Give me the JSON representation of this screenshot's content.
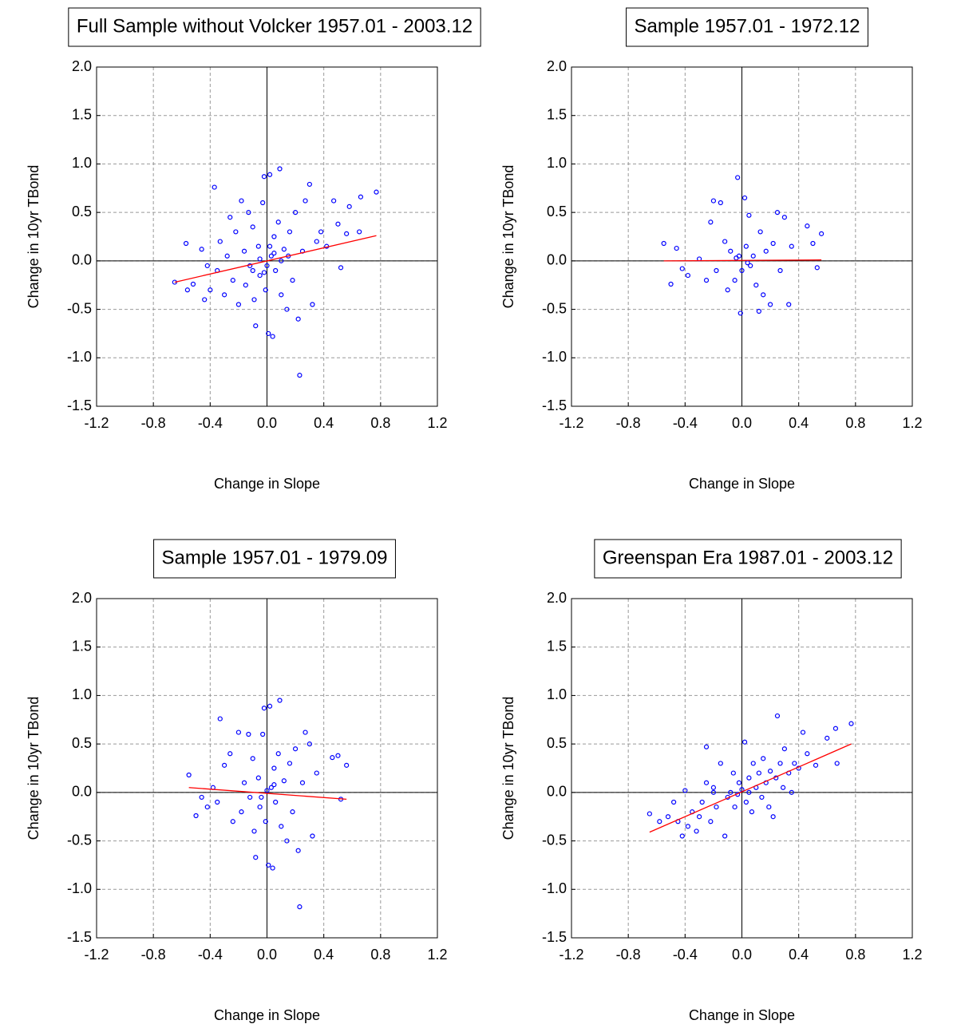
{
  "chart_data": [
    {
      "type": "scatter",
      "title": "Full Sample without Volcker 1957.01 - 2003.12",
      "xlabel": "Change in Slope",
      "ylabel": "Change in 10yr TBond",
      "xlim": [
        -1.2,
        1.2
      ],
      "ylim": [
        -1.5,
        2.0
      ],
      "xticks": [
        -1.2,
        -0.8,
        -0.4,
        {
          "value": 0,
          "label": "0.0"
        },
        0.4,
        0.8,
        1.2
      ],
      "yticks": [
        -1.5,
        {
          "value": -1,
          "label": "-1.0"
        },
        -0.5,
        {
          "value": 0,
          "label": "0.0"
        },
        0.5,
        {
          "value": 1,
          "label": "1.0"
        },
        1.5,
        {
          "value": 2,
          "label": "2.0"
        }
      ],
      "grid": true,
      "series": [
        {
          "type": "scatter",
          "color": "#0000ff",
          "x": [
            -0.65,
            -0.57,
            -0.56,
            -0.52,
            -0.46,
            -0.44,
            -0.42,
            -0.4,
            -0.37,
            -0.35,
            -0.33,
            -0.3,
            -0.28,
            -0.26,
            -0.24,
            -0.22,
            -0.2,
            -0.18,
            -0.16,
            -0.15,
            -0.13,
            -0.12,
            -0.1,
            -0.09,
            -0.08,
            -0.06,
            -0.05,
            -0.03,
            -0.02,
            -0.01,
            0.01,
            0.02,
            0.03,
            0.04,
            0.05,
            0.06,
            0.08,
            0.09,
            0.1,
            0.12,
            0.14,
            0.16,
            0.18,
            0.2,
            0.22,
            0.23,
            0.25,
            0.27,
            0.3,
            0.32,
            0.35,
            0.38,
            0.42,
            0.47,
            0.5,
            0.52,
            0.56,
            0.58,
            0.65,
            0.66,
            0.77,
            -0.05,
            0.0,
            0.05,
            0.1,
            -0.1,
            0.15,
            0.02,
            -0.02
          ],
          "values": [
            -0.22,
            0.18,
            -0.3,
            -0.24,
            0.12,
            -0.4,
            -0.05,
            -0.3,
            0.76,
            -0.1,
            0.2,
            -0.35,
            0.05,
            0.45,
            -0.2,
            0.3,
            -0.45,
            0.62,
            0.1,
            -0.25,
            0.5,
            -0.05,
            0.35,
            -0.4,
            -0.67,
            0.15,
            -0.15,
            0.6,
            0.87,
            -0.3,
            -0.75,
            0.89,
            0.05,
            -0.78,
            0.25,
            -0.1,
            0.4,
            0.95,
            -0.35,
            0.12,
            -0.5,
            0.3,
            -0.2,
            0.5,
            -0.6,
            -1.18,
            0.1,
            0.62,
            0.79,
            -0.45,
            0.2,
            0.3,
            0.15,
            0.62,
            0.38,
            -0.07,
            0.28,
            0.56,
            0.3,
            0.66,
            0.71,
            0.02,
            -0.05,
            0.08,
            0.0,
            -0.1,
            0.05,
            0.15,
            -0.12
          ]
        },
        {
          "type": "line",
          "color": "#ff0000",
          "x": [
            -0.65,
            0.77
          ],
          "values": [
            -0.22,
            0.26
          ]
        }
      ]
    },
    {
      "type": "scatter",
      "title": "Sample 1957.01 - 1972.12",
      "xlabel": "Change in Slope",
      "ylabel": "Change in 10yr TBond",
      "xlim": [
        -1.2,
        1.2
      ],
      "ylim": [
        -1.5,
        2.0
      ],
      "xticks": [
        -1.2,
        -0.8,
        -0.4,
        {
          "value": 0,
          "label": "0.0"
        },
        0.4,
        0.8,
        1.2
      ],
      "yticks": [
        -1.5,
        {
          "value": -1,
          "label": "-1.0"
        },
        -0.5,
        {
          "value": 0,
          "label": "0.0"
        },
        0.5,
        {
          "value": 1,
          "label": "1.0"
        },
        1.5,
        {
          "value": 2,
          "label": "2.0"
        }
      ],
      "grid": true,
      "series": [
        {
          "type": "scatter",
          "color": "#0000ff",
          "x": [
            -0.55,
            -0.5,
            -0.46,
            -0.42,
            -0.38,
            -0.3,
            -0.25,
            -0.22,
            -0.2,
            -0.18,
            -0.15,
            -0.12,
            -0.1,
            -0.08,
            -0.05,
            -0.03,
            -0.02,
            -0.01,
            0.0,
            0.02,
            0.03,
            0.05,
            0.06,
            0.08,
            0.1,
            0.12,
            0.13,
            0.15,
            0.17,
            0.2,
            0.22,
            0.25,
            0.27,
            0.3,
            0.33,
            0.35,
            0.46,
            0.5,
            0.53,
            0.56,
            0.04,
            -0.04
          ],
          "values": [
            0.18,
            -0.24,
            0.13,
            -0.08,
            -0.15,
            0.02,
            -0.2,
            0.4,
            0.62,
            -0.1,
            0.6,
            0.2,
            -0.3,
            0.1,
            -0.2,
            0.86,
            0.05,
            -0.54,
            -0.1,
            0.65,
            0.15,
            0.47,
            -0.05,
            0.05,
            -0.25,
            -0.52,
            0.3,
            -0.35,
            0.1,
            -0.45,
            0.18,
            0.5,
            -0.1,
            0.45,
            -0.45,
            0.15,
            0.36,
            0.18,
            -0.07,
            0.28,
            -0.02,
            0.03
          ]
        },
        {
          "type": "line",
          "color": "#ff0000",
          "x": [
            -0.55,
            0.56
          ],
          "values": [
            0.0,
            0.01
          ]
        }
      ]
    },
    {
      "type": "scatter",
      "title": "Sample 1957.01 - 1979.09",
      "xlabel": "Change in Slope",
      "ylabel": "Change in 10yr TBond",
      "xlim": [
        -1.2,
        1.2
      ],
      "ylim": [
        -1.5,
        2.0
      ],
      "xticks": [
        -1.2,
        -0.8,
        -0.4,
        {
          "value": 0,
          "label": "0.0"
        },
        0.4,
        0.8,
        1.2
      ],
      "yticks": [
        -1.5,
        {
          "value": -1,
          "label": "-1.0"
        },
        -0.5,
        {
          "value": 0,
          "label": "0.0"
        },
        0.5,
        {
          "value": 1,
          "label": "1.0"
        },
        1.5,
        {
          "value": 2,
          "label": "2.0"
        }
      ],
      "grid": true,
      "series": [
        {
          "type": "scatter",
          "color": "#0000ff",
          "x": [
            -0.55,
            -0.5,
            -0.46,
            -0.42,
            -0.38,
            -0.35,
            -0.33,
            -0.3,
            -0.26,
            -0.24,
            -0.2,
            -0.18,
            -0.16,
            -0.13,
            -0.12,
            -0.1,
            -0.09,
            -0.08,
            -0.06,
            -0.05,
            -0.03,
            -0.02,
            -0.01,
            0.01,
            0.02,
            0.03,
            0.04,
            0.05,
            0.06,
            0.08,
            0.09,
            0.1,
            0.12,
            0.14,
            0.16,
            0.18,
            0.2,
            0.22,
            0.23,
            0.25,
            0.27,
            0.3,
            0.32,
            0.35,
            0.46,
            0.5,
            0.52,
            0.56,
            0.0,
            0.05,
            -0.04
          ],
          "values": [
            0.18,
            -0.24,
            -0.05,
            -0.15,
            0.05,
            -0.1,
            0.76,
            0.28,
            0.4,
            -0.3,
            0.62,
            -0.2,
            0.1,
            0.6,
            -0.05,
            0.35,
            -0.4,
            -0.67,
            0.15,
            -0.15,
            0.6,
            0.87,
            -0.3,
            -0.75,
            0.89,
            0.05,
            -0.78,
            0.25,
            -0.1,
            0.4,
            0.95,
            -0.35,
            0.12,
            -0.5,
            0.3,
            -0.2,
            0.45,
            -0.6,
            -1.18,
            0.1,
            0.62,
            0.5,
            -0.45,
            0.2,
            0.36,
            0.38,
            -0.07,
            0.28,
            0.02,
            0.08,
            -0.05
          ]
        },
        {
          "type": "line",
          "color": "#ff0000",
          "x": [
            -0.55,
            0.56
          ],
          "values": [
            0.05,
            -0.07
          ]
        }
      ]
    },
    {
      "type": "scatter",
      "title": "Greenspan Era 1987.01 - 2003.12",
      "xlabel": "Change in Slope",
      "ylabel": "Change in 10yr TBond",
      "xlim": [
        -1.2,
        1.2
      ],
      "ylim": [
        -1.5,
        2.0
      ],
      "xticks": [
        -1.2,
        -0.8,
        -0.4,
        {
          "value": 0,
          "label": "0.0"
        },
        0.4,
        0.8,
        1.2
      ],
      "yticks": [
        -1.5,
        {
          "value": -1,
          "label": "-1.0"
        },
        -0.5,
        {
          "value": 0,
          "label": "0.0"
        },
        0.5,
        {
          "value": 1,
          "label": "1.0"
        },
        1.5,
        {
          "value": 2,
          "label": "2.0"
        }
      ],
      "grid": true,
      "series": [
        {
          "type": "scatter",
          "color": "#0000ff",
          "x": [
            -0.65,
            -0.58,
            -0.52,
            -0.48,
            -0.45,
            -0.42,
            -0.4,
            -0.38,
            -0.35,
            -0.32,
            -0.3,
            -0.28,
            -0.25,
            -0.25,
            -0.22,
            -0.2,
            -0.18,
            -0.15,
            -0.12,
            -0.1,
            -0.08,
            -0.06,
            -0.05,
            -0.03,
            -0.02,
            0.0,
            0.02,
            0.03,
            0.05,
            0.07,
            0.08,
            0.1,
            0.12,
            0.14,
            0.15,
            0.17,
            0.19,
            0.2,
            0.22,
            0.24,
            0.25,
            0.27,
            0.29,
            0.3,
            0.33,
            0.35,
            0.37,
            0.4,
            0.43,
            0.46,
            0.52,
            0.6,
            0.66,
            0.67,
            0.77,
            -0.2,
            0.05
          ],
          "values": [
            -0.22,
            -0.3,
            -0.25,
            -0.1,
            -0.3,
            -0.45,
            0.02,
            -0.35,
            -0.2,
            -0.4,
            -0.25,
            -0.1,
            0.1,
            0.47,
            -0.3,
            0.05,
            -0.15,
            0.3,
            -0.45,
            -0.05,
            0.0,
            0.2,
            -0.15,
            -0.02,
            0.1,
            0.03,
            0.52,
            -0.1,
            0.15,
            -0.2,
            0.3,
            0.05,
            0.2,
            -0.05,
            0.35,
            0.1,
            -0.15,
            0.22,
            -0.25,
            0.15,
            0.79,
            0.3,
            0.05,
            0.45,
            0.2,
            0.0,
            0.3,
            0.25,
            0.62,
            0.4,
            0.28,
            0.56,
            0.66,
            0.3,
            0.71,
            0.0,
            0.0
          ]
        },
        {
          "type": "line",
          "color": "#ff0000",
          "x": [
            -0.65,
            0.77
          ],
          "values": [
            -0.41,
            0.5
          ]
        }
      ]
    }
  ]
}
